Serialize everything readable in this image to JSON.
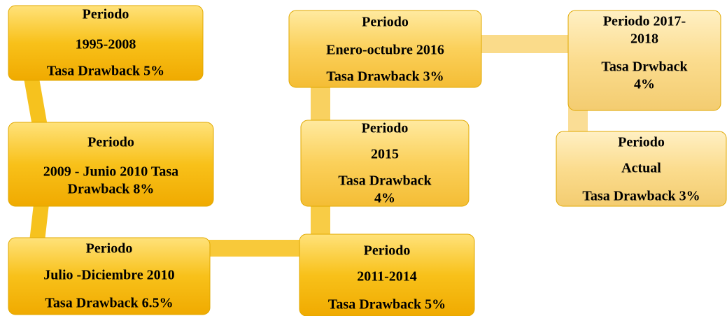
{
  "nodes": [
    {
      "lines": [
        "Periodo",
        "1995-2008",
        "Tasa Drawback 5%"
      ]
    },
    {
      "lines": [
        "Periodo",
        "2009 - Junio 2010 Tasa",
        "Drawback 8%"
      ]
    },
    {
      "lines": [
        "Periodo",
        "Julio -Diciembre 2010",
        "Tasa Drawback 6.5%"
      ]
    },
    {
      "lines": [
        "Periodo",
        "2011-2014",
        "Tasa Drawback 5%"
      ]
    },
    {
      "lines": [
        "Periodo",
        "2015",
        "Tasa Drawback",
        "4%"
      ]
    },
    {
      "lines": [
        "Periodo",
        "Enero-octubre 2016",
        "Tasa Drawback 3%"
      ]
    },
    {
      "lines": [
        "Periodo 2017-",
        "2018",
        "Tasa Drwback",
        "4%"
      ]
    },
    {
      "lines": [
        "Periodo",
        "Actual",
        "Tasa Drawback 3%"
      ]
    }
  ]
}
